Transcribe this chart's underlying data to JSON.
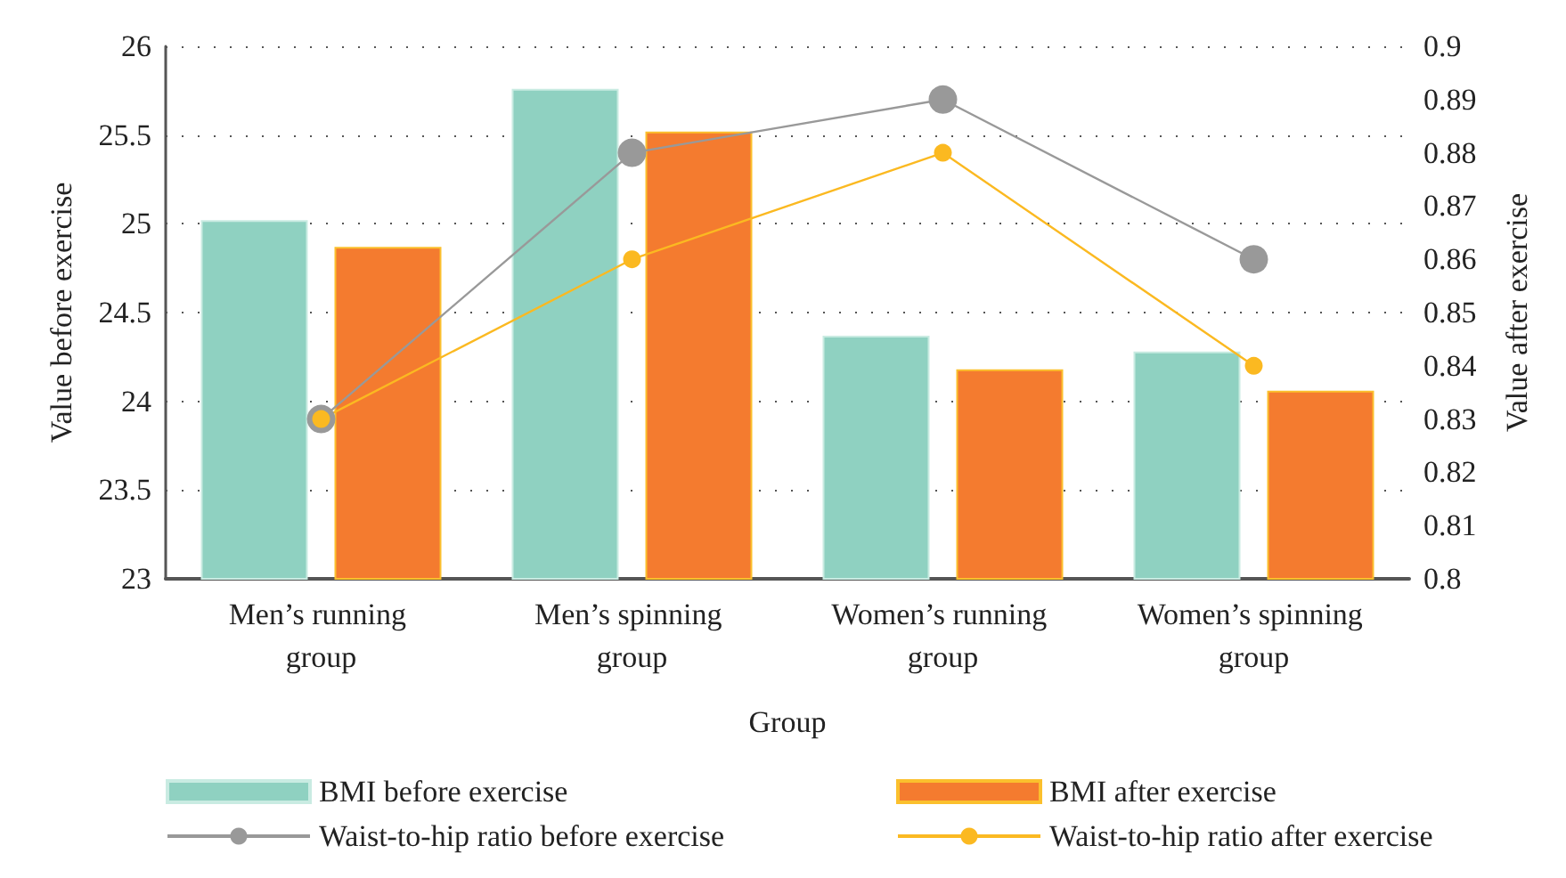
{
  "chart_data": {
    "type": "bar",
    "xlabel": "Group",
    "ylabel": "Value before exercise",
    "y2label": "Value after exercise",
    "categories": [
      "Men’s running group",
      "Men’s spinning group",
      "Women’s running group",
      "Women’s spinning group"
    ],
    "series": [
      {
        "name": "BMI before exercise",
        "color": "#8fd1c1",
        "values": [
          25.02,
          25.76,
          24.37,
          24.28
        ]
      },
      {
        "name": "BMI after exercise",
        "color": "#f47b2f",
        "values": [
          24.87,
          25.52,
          24.18,
          24.06
        ]
      },
      {
        "name": "Waist-to-hip ratio before exercise",
        "type": "line",
        "axis": "y2",
        "color": "#999999",
        "values": [
          0.83,
          0.88,
          0.89,
          0.86
        ]
      },
      {
        "name": "Waist-to-hip ratio after exercise",
        "type": "line",
        "axis": "y2",
        "color": "#fbb921",
        "values": [
          0.83,
          0.86,
          0.88,
          0.84
        ]
      }
    ],
    "ylim": [
      23,
      26
    ],
    "yticks": [
      23,
      23.5,
      24,
      24.5,
      25,
      25.5,
      26
    ],
    "y2lim": [
      0.8,
      0.9
    ],
    "y2ticks": [
      0.8,
      0.81,
      0.82,
      0.83,
      0.84,
      0.85,
      0.86,
      0.87,
      0.88,
      0.89,
      0.9
    ],
    "grid": "y",
    "legend": "bottom",
    "marker": "circle",
    "line_style": "solid"
  }
}
